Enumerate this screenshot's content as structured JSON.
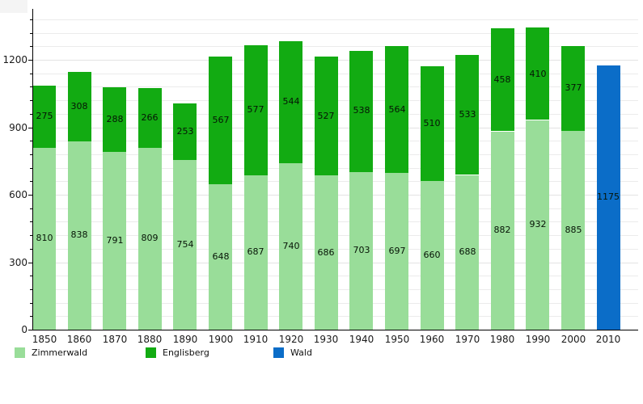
{
  "chart_data": {
    "type": "bar",
    "stacked": true,
    "title": "",
    "xlabel": "",
    "ylabel": "",
    "categories": [
      "1850",
      "1860",
      "1870",
      "1880",
      "1890",
      "1900",
      "1910",
      "1920",
      "1930",
      "1940",
      "1950",
      "1960",
      "1970",
      "1980",
      "1990",
      "2000",
      "2010"
    ],
    "series": [
      {
        "name": "Zimmerwald",
        "color": "#99dd99",
        "values": [
          810,
          838,
          791,
          809,
          754,
          648,
          687,
          740,
          686,
          703,
          697,
          660,
          688,
          882,
          932,
          885,
          null
        ]
      },
      {
        "name": "Englisberg",
        "color": "#12ab12",
        "values": [
          275,
          308,
          288,
          266,
          253,
          567,
          577,
          544,
          527,
          538,
          564,
          510,
          533,
          458,
          410,
          377,
          null
        ]
      },
      {
        "name": "Wald",
        "color": "#0b6dc8",
        "values": [
          null,
          null,
          null,
          null,
          null,
          null,
          null,
          null,
          null,
          null,
          null,
          null,
          null,
          null,
          null,
          null,
          1175
        ]
      }
    ],
    "ylim": [
      0,
      1430
    ],
    "yticks": [
      0,
      300,
      600,
      900,
      1200
    ],
    "minor_grid_step": 60,
    "grid": true,
    "legend_position": "bottom",
    "bar_value_labels": "inside-center",
    "value_label_color": "#061406",
    "background_color": "#ffffff"
  }
}
